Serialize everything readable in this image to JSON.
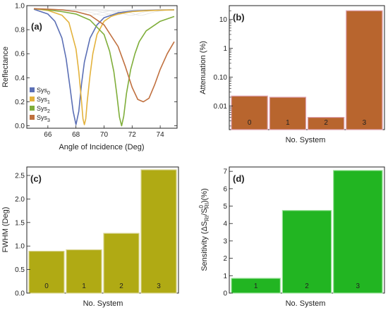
{
  "chart_data": [
    {
      "panel": "(a)",
      "type": "line",
      "xlabel": "Angle of Incidence (Deg)",
      "ylabel": "Reflectance",
      "xlim": [
        64.5,
        75.2
      ],
      "ylim": [
        -0.02,
        1.0
      ],
      "xticks": [
        66,
        68,
        70,
        72,
        74
      ],
      "yticks": [
        "0.0",
        "0.2",
        "0.4",
        "0.6",
        "0.8",
        "1.0"
      ],
      "grid": false,
      "legend_position": "lower-left",
      "series": [
        {
          "name": "Sys",
          "sub": "0",
          "color": "#5b6fb5",
          "x": [
            65,
            66,
            66.5,
            67,
            67.3,
            67.6,
            67.8,
            68,
            68.2,
            68.4,
            68.6,
            69,
            69.5,
            70,
            71,
            72,
            73,
            74,
            75
          ],
          "y": [
            0.97,
            0.93,
            0.87,
            0.73,
            0.56,
            0.3,
            0.12,
            0.01,
            0.12,
            0.35,
            0.53,
            0.73,
            0.84,
            0.9,
            0.94,
            0.955,
            0.96,
            0.963,
            0.965
          ]
        },
        {
          "name": "Sys",
          "sub": "1",
          "color": "#e3b23c",
          "x": [
            65,
            66,
            67,
            67.5,
            68,
            68.2,
            68.4,
            68.5,
            68.6,
            68.7,
            68.8,
            69,
            69.2,
            69.5,
            70,
            70.5,
            71,
            72,
            73,
            74,
            75
          ],
          "y": [
            0.975,
            0.96,
            0.92,
            0.86,
            0.64,
            0.45,
            0.2,
            0.06,
            0.01,
            0.06,
            0.2,
            0.42,
            0.6,
            0.76,
            0.87,
            0.91,
            0.93,
            0.95,
            0.958,
            0.962,
            0.965
          ]
        },
        {
          "name": "Sys",
          "sub": "2",
          "color": "#7fae3a",
          "x": [
            65,
            66,
            67,
            68,
            69,
            70,
            70.4,
            70.7,
            70.9,
            71.1,
            71.25,
            71.4,
            71.6,
            71.9,
            72.2,
            72.5,
            73,
            74,
            75
          ],
          "y": [
            0.975,
            0.965,
            0.95,
            0.93,
            0.88,
            0.76,
            0.62,
            0.45,
            0.27,
            0.07,
            0.0,
            0.08,
            0.27,
            0.47,
            0.6,
            0.7,
            0.79,
            0.87,
            0.91
          ]
        },
        {
          "name": "Sys",
          "sub": "3",
          "color": "#c0703f",
          "x": [
            65,
            66,
            67,
            68,
            69,
            70,
            71,
            71.5,
            72,
            72.4,
            72.8,
            73.2,
            73.6,
            74,
            74.5,
            75
          ],
          "y": [
            0.975,
            0.97,
            0.965,
            0.95,
            0.92,
            0.84,
            0.66,
            0.5,
            0.32,
            0.22,
            0.2,
            0.23,
            0.34,
            0.47,
            0.6,
            0.7
          ]
        }
      ]
    },
    {
      "panel": "(b)",
      "type": "bar",
      "xlabel": "No. System",
      "ylabel": "Attenuation (%)",
      "yscale": "log",
      "ylim": [
        0.0015,
        30
      ],
      "yticks": [
        "0.01",
        "0.10",
        "1",
        "10"
      ],
      "categories": [
        "0",
        "1",
        "2",
        "3"
      ],
      "values": [
        0.022,
        0.02,
        0.004,
        20
      ],
      "color": "#b8652e",
      "edge_color": "#e0a4b4"
    },
    {
      "panel": "(c)",
      "type": "bar",
      "xlabel": "No. System",
      "ylabel": "FWHM (Deg)",
      "ylim": [
        0,
        2.68
      ],
      "yticks": [
        "0.0",
        "0.5",
        "1.0",
        "1.5",
        "2.0",
        "2.5"
      ],
      "categories": [
        "0",
        "1",
        "2",
        "3"
      ],
      "values": [
        0.89,
        0.92,
        1.27,
        2.62
      ],
      "color": "#b0aa14",
      "edge_color": "#d8d490"
    },
    {
      "panel": "(d)",
      "type": "bar",
      "xlabel": "No. System",
      "ylabel_pre": "Sensitivity (ΔS",
      "ylabel_sub1": "RI",
      "ylabel_mid": "/S",
      "ylabel_sup": "0",
      "ylabel_sub2": "RI",
      "ylabel_post": ")(%)",
      "ylim": [
        0,
        7.25
      ],
      "yticks": [
        "0",
        "1",
        "2",
        "3",
        "4",
        "5",
        "6",
        "7"
      ],
      "categories": [
        "1",
        "2",
        "3"
      ],
      "values": [
        0.85,
        4.75,
        7.05
      ],
      "color": "#22b522",
      "edge_color": "#9ee49e"
    }
  ]
}
